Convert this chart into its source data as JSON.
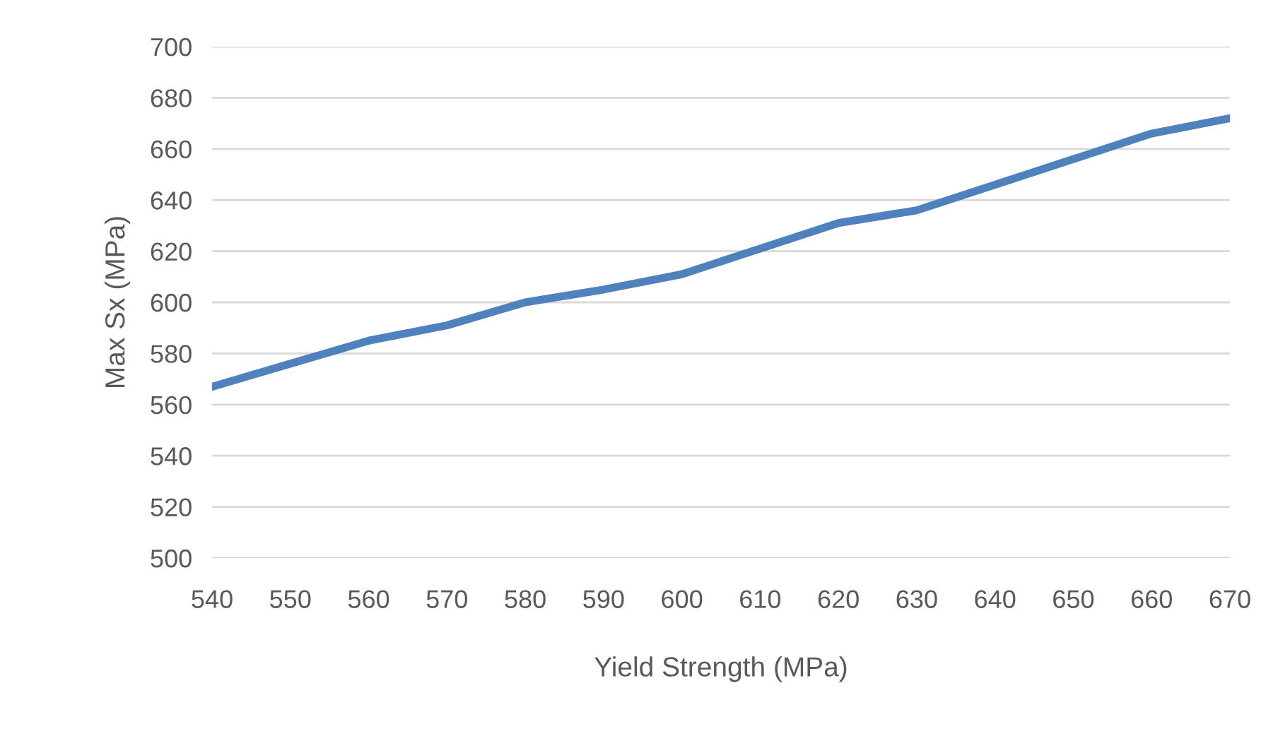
{
  "chart_data": {
    "type": "line",
    "xlabel": "Yield Strength (MPa)",
    "ylabel": "Max Sx (MPa)",
    "categories": [
      "540",
      "550",
      "560",
      "570",
      "580",
      "590",
      "600",
      "610",
      "620",
      "630",
      "640",
      "650",
      "660",
      "670"
    ],
    "series": [
      {
        "color": "#4f81bd",
        "values": [
          567,
          576,
          585,
          591,
          600,
          605,
          611,
          621,
          631,
          636,
          646,
          656,
          666,
          672
        ]
      }
    ],
    "ylim": [
      500,
      700
    ],
    "yticks": [
      500,
      520,
      540,
      560,
      580,
      600,
      620,
      640,
      660,
      680,
      700
    ],
    "grid": "y",
    "marker": "none",
    "line_style": "solid"
  }
}
